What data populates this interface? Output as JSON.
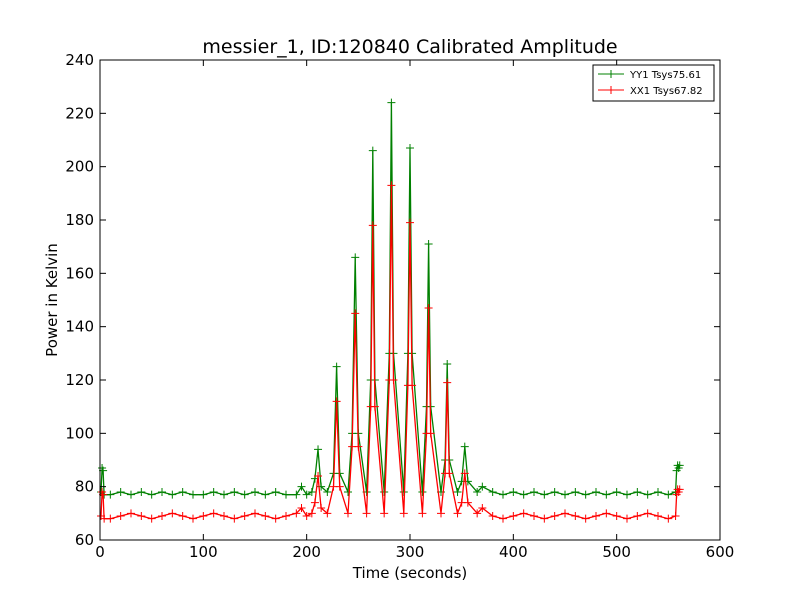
{
  "chart_data": {
    "type": "line",
    "title": "messier_1, ID:120840 Calibrated Amplitude",
    "xlabel": "Time (seconds)",
    "ylabel": "Power in Kelvin",
    "xlim": [
      0,
      600
    ],
    "ylim": [
      60,
      240
    ],
    "xticks": [
      0,
      100,
      200,
      300,
      400,
      500,
      600
    ],
    "yticks": [
      60,
      80,
      100,
      120,
      140,
      160,
      180,
      200,
      220,
      240
    ],
    "grid": false,
    "legend_position": "top-right",
    "series": [
      {
        "name": "YY1 Tsys75.61",
        "color": "#008000",
        "marker": "+",
        "baseline": 77.5,
        "x": [
          1,
          2,
          3,
          4,
          10,
          20,
          30,
          40,
          50,
          60,
          70,
          80,
          90,
          100,
          110,
          120,
          130,
          140,
          150,
          160,
          170,
          180,
          190,
          195,
          200,
          205,
          208,
          211,
          214,
          220,
          226,
          229,
          232,
          240,
          244,
          247,
          250,
          258,
          262,
          264,
          266,
          275,
          280,
          282,
          284,
          294,
          298,
          300,
          302,
          312,
          316,
          318,
          320,
          330,
          334,
          336,
          338,
          346,
          350,
          353,
          356,
          365,
          370,
          380,
          390,
          400,
          410,
          420,
          430,
          440,
          450,
          460,
          470,
          480,
          490,
          500,
          510,
          520,
          530,
          540,
          550,
          557,
          558,
          559,
          560,
          561
        ],
        "y": [
          78,
          87,
          86,
          77,
          77,
          78,
          77,
          78,
          77,
          78,
          77,
          78,
          77,
          77,
          78,
          77,
          78,
          77,
          78,
          77,
          78,
          77,
          77,
          80,
          77,
          78,
          83,
          94,
          80,
          78,
          85,
          125,
          85,
          78,
          100,
          166,
          100,
          78,
          120,
          206,
          120,
          78,
          130,
          224,
          130,
          78,
          130,
          207,
          130,
          78,
          110,
          171,
          110,
          78,
          90,
          126,
          90,
          78,
          82,
          95,
          82,
          78,
          80,
          78,
          77,
          78,
          77,
          78,
          77,
          78,
          77,
          78,
          77,
          78,
          77,
          78,
          77,
          78,
          77,
          78,
          77,
          78,
          86,
          88,
          87,
          88
        ]
      },
      {
        "name": "XX1 Tsys67.82",
        "color": "#ff0000",
        "marker": "+",
        "baseline": 69,
        "x": [
          1,
          2,
          3,
          4,
          10,
          20,
          30,
          40,
          50,
          60,
          70,
          80,
          90,
          100,
          110,
          120,
          130,
          140,
          150,
          160,
          170,
          180,
          190,
          195,
          200,
          205,
          208,
          211,
          214,
          220,
          226,
          229,
          232,
          240,
          244,
          247,
          250,
          258,
          262,
          264,
          266,
          275,
          280,
          282,
          284,
          294,
          298,
          300,
          302,
          312,
          316,
          318,
          320,
          330,
          334,
          336,
          338,
          346,
          350,
          353,
          356,
          365,
          370,
          380,
          390,
          400,
          410,
          420,
          430,
          440,
          450,
          460,
          470,
          480,
          490,
          500,
          510,
          520,
          530,
          540,
          550,
          557,
          558,
          559,
          560,
          561
        ],
        "y": [
          69,
          78,
          77,
          68,
          68,
          69,
          70,
          69,
          68,
          69,
          70,
          69,
          68,
          69,
          70,
          69,
          68,
          69,
          70,
          69,
          68,
          69,
          70,
          72,
          69,
          70,
          74,
          84,
          72,
          70,
          80,
          112,
          80,
          70,
          95,
          145,
          95,
          70,
          110,
          178,
          110,
          70,
          120,
          193,
          120,
          70,
          118,
          179,
          118,
          70,
          100,
          147,
          100,
          70,
          85,
          119,
          85,
          70,
          74,
          85,
          74,
          70,
          72,
          69,
          68,
          69,
          70,
          69,
          68,
          69,
          70,
          69,
          68,
          69,
          70,
          69,
          68,
          69,
          70,
          69,
          68,
          69,
          77,
          79,
          78,
          79
        ]
      }
    ]
  }
}
